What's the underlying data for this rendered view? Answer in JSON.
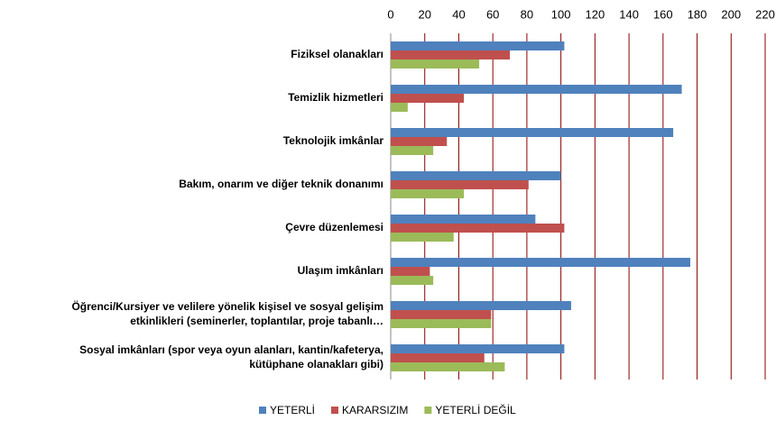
{
  "chart_data": {
    "type": "hbar",
    "categories": [
      "Fiziksel olanakları",
      "Temizlik hizmetleri",
      "Teknolojik imkânlar",
      "Bakım, onarım ve diğer teknik donanımı",
      "Çevre düzenlemesi",
      "Ulaşım imkânları",
      "Öğrenci/Kursiyer ve velilere yönelik kişisel ve sosyal gelişim\netkinlikleri (seminerler, toplantılar, proje tabanlı…",
      "Sosyal imkânları (spor veya oyun alanları, kantin/kafeterya,\nkütüphane olanakları gibi)"
    ],
    "series": [
      {
        "name": "YETERLİ",
        "color": "#4f81bd",
        "values": [
          102,
          171,
          166,
          100,
          85,
          176,
          106,
          102
        ]
      },
      {
        "name": "KARARSIZIM",
        "color": "#c0504d",
        "values": [
          70,
          43,
          33,
          81,
          102,
          23,
          59,
          55
        ]
      },
      {
        "name": "YETERLİ DEĞİL",
        "color": "#9bbb59",
        "values": [
          52,
          10,
          25,
          43,
          37,
          25,
          59,
          67
        ]
      }
    ],
    "xlim": [
      0,
      220
    ],
    "xticks": [
      0,
      20,
      40,
      60,
      80,
      100,
      120,
      140,
      160,
      180,
      200,
      220
    ],
    "grid": true,
    "grid_color": "#8b0000",
    "legend": "bottom"
  }
}
